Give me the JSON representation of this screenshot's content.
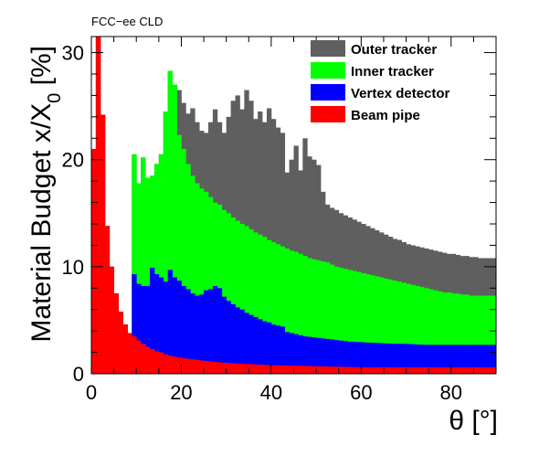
{
  "chart_data": {
    "type": "area",
    "subtitle": "FCC−ee CLD",
    "ylabel": "Material Budget x/X",
    "ylabel_sub": "0",
    "ylabel_unit": " [%]",
    "xlabel": "θ [°]",
    "xlim": [
      0,
      90
    ],
    "ylim": [
      0,
      31.5
    ],
    "x_ticks": [
      0,
      20,
      40,
      60,
      80
    ],
    "y_ticks": [
      0,
      10,
      20,
      30
    ],
    "bin_width": 1,
    "legend_position": "top-right",
    "grid": false,
    "x": [
      0,
      1,
      2,
      3,
      4,
      5,
      6,
      7,
      8,
      9,
      10,
      11,
      12,
      13,
      14,
      15,
      16,
      17,
      18,
      19,
      20,
      21,
      22,
      23,
      24,
      25,
      26,
      27,
      28,
      29,
      30,
      31,
      32,
      33,
      34,
      35,
      36,
      37,
      38,
      39,
      40,
      41,
      42,
      43,
      44,
      45,
      46,
      47,
      48,
      49,
      50,
      51,
      52,
      53,
      54,
      55,
      56,
      57,
      58,
      59,
      60,
      61,
      62,
      63,
      64,
      65,
      66,
      67,
      68,
      69,
      70,
      71,
      72,
      73,
      74,
      75,
      76,
      77,
      78,
      79,
      80,
      81,
      82,
      83,
      84,
      85,
      86,
      87,
      88,
      89
    ],
    "series": [
      {
        "name": "Beam pipe",
        "color": "#ff0000",
        "values": [
          21.0,
          31.5,
          24.2,
          13.8,
          10.0,
          7.5,
          5.8,
          4.6,
          3.8,
          3.5,
          3.1,
          2.8,
          2.5,
          2.3,
          2.1,
          2.0,
          1.8,
          1.7,
          1.6,
          1.5,
          1.45,
          1.4,
          1.35,
          1.3,
          1.25,
          1.2,
          1.15,
          1.1,
          1.07,
          1.04,
          1.01,
          0.98,
          0.95,
          0.93,
          0.91,
          0.89,
          0.87,
          0.85,
          0.83,
          0.81,
          0.8,
          0.79,
          0.78,
          0.77,
          0.76,
          0.75,
          0.74,
          0.73,
          0.72,
          0.71,
          0.7,
          0.69,
          0.68,
          0.67,
          0.66,
          0.65,
          0.64,
          0.63,
          0.62,
          0.61,
          0.6,
          0.6,
          0.6,
          0.6,
          0.6,
          0.6,
          0.6,
          0.6,
          0.6,
          0.6,
          0.6,
          0.6,
          0.6,
          0.6,
          0.6,
          0.6,
          0.6,
          0.6,
          0.6,
          0.6,
          0.6,
          0.6,
          0.6,
          0.6,
          0.6,
          0.6,
          0.6,
          0.6,
          0.6,
          0.6
        ]
      },
      {
        "name": "Vertex detector",
        "color": "#0000ff",
        "values": [
          21.0,
          31.5,
          24.2,
          13.8,
          10.0,
          7.5,
          5.8,
          4.6,
          3.8,
          9.3,
          8.4,
          8.2,
          8.2,
          9.9,
          9.3,
          9.0,
          8.6,
          9.7,
          9.0,
          8.7,
          8.2,
          7.9,
          7.5,
          7.3,
          7.4,
          7.8,
          7.9,
          8.2,
          8.0,
          7.2,
          6.8,
          6.5,
          6.2,
          6.0,
          5.7,
          5.5,
          5.3,
          5.1,
          4.9,
          4.8,
          4.6,
          4.5,
          4.4,
          3.9,
          3.8,
          3.7,
          3.6,
          3.5,
          3.45,
          3.4,
          3.35,
          3.3,
          3.25,
          3.2,
          3.15,
          3.1,
          3.05,
          3.0,
          2.98,
          2.96,
          2.94,
          2.92,
          2.9,
          2.88,
          2.86,
          2.84,
          2.82,
          2.8,
          2.8,
          2.8,
          2.78,
          2.76,
          2.74,
          2.72,
          2.7,
          2.7,
          2.7,
          2.7,
          2.7,
          2.7,
          2.7,
          2.7,
          2.7,
          2.7,
          2.7,
          2.7,
          2.7,
          2.7,
          2.7,
          2.7
        ]
      },
      {
        "name": "Inner tracker",
        "color": "#00ff00",
        "values": [
          21.0,
          31.5,
          24.2,
          13.8,
          10.0,
          7.5,
          5.8,
          4.6,
          3.8,
          20.5,
          17.8,
          20.2,
          18.3,
          18.5,
          19.6,
          20.5,
          24.5,
          28.3,
          27.0,
          22.3,
          21.0,
          19.6,
          18.5,
          17.8,
          17.3,
          17.0,
          16.5,
          16.0,
          15.8,
          15.3,
          15.0,
          14.6,
          14.3,
          14.0,
          13.8,
          13.5,
          13.2,
          13.0,
          12.8,
          12.5,
          12.3,
          12.1,
          11.9,
          11.7,
          11.5,
          11.4,
          11.2,
          11.0,
          10.8,
          10.7,
          10.6,
          10.5,
          10.4,
          10.2,
          10.0,
          9.9,
          9.8,
          9.7,
          9.6,
          9.5,
          9.4,
          9.3,
          9.2,
          9.1,
          9.0,
          8.9,
          8.8,
          8.7,
          8.6,
          8.5,
          8.4,
          8.3,
          8.2,
          8.1,
          8.0,
          7.9,
          7.8,
          7.7,
          7.6,
          7.6,
          7.5,
          7.5,
          7.4,
          7.4,
          7.3,
          7.3,
          7.3,
          7.3,
          7.3,
          7.3
        ]
      },
      {
        "name": "Outer tracker",
        "color": "#5f5f5f",
        "values": [
          21.0,
          31.5,
          24.2,
          13.8,
          10.0,
          7.5,
          5.8,
          4.6,
          3.8,
          20.5,
          17.8,
          20.2,
          18.3,
          18.5,
          19.6,
          20.5,
          24.5,
          28.3,
          27.0,
          26.5,
          25.3,
          24.3,
          24.8,
          23.5,
          22.7,
          22.5,
          23.5,
          24.7,
          23.5,
          22.5,
          24.0,
          25.5,
          26.0,
          24.7,
          26.5,
          25.5,
          23.8,
          24.5,
          23.5,
          24.8,
          23.8,
          23.0,
          22.5,
          18.8,
          20.0,
          21.3,
          19.0,
          22.0,
          20.3,
          20.0,
          19.5,
          17.0,
          15.8,
          15.5,
          15.3,
          15.0,
          14.8,
          14.6,
          14.4,
          14.2,
          14.0,
          13.8,
          13.6,
          13.4,
          13.2,
          13.0,
          12.8,
          12.6,
          12.5,
          12.3,
          12.1,
          12.0,
          11.9,
          11.8,
          11.7,
          11.6,
          11.5,
          11.4,
          11.3,
          11.2,
          11.2,
          11.1,
          11.0,
          11.0,
          10.9,
          10.9,
          10.8,
          10.8,
          10.8,
          10.8
        ]
      }
    ],
    "legend": [
      {
        "label": "Outer tracker",
        "color": "#5f5f5f"
      },
      {
        "label": "Inner tracker",
        "color": "#00ff00"
      },
      {
        "label": "Vertex detector",
        "color": "#0000ff"
      },
      {
        "label": "Beam pipe",
        "color": "#ff0000"
      }
    ]
  }
}
